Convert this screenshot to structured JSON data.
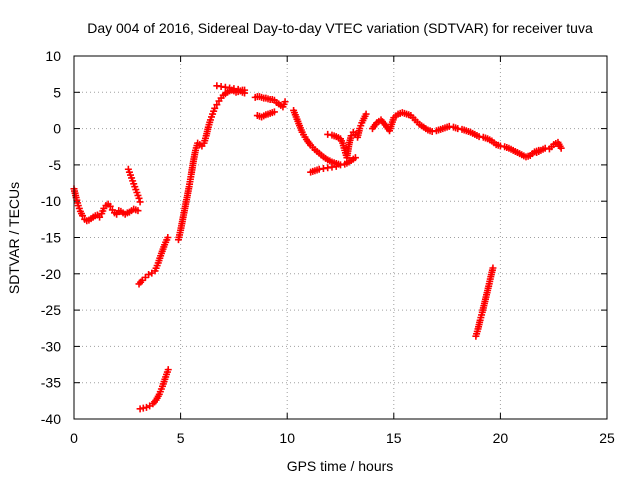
{
  "chart_data": {
    "type": "scatter",
    "title": "Day 004 of 2016, Sidereal Day-to-day VTEC variation (SDTVAR) for receiver tuva",
    "xlabel": "GPS time / hours",
    "ylabel": "SDTVAR / TECUs",
    "xlim": [
      0,
      25
    ],
    "ylim": [
      -40,
      10
    ],
    "xticks": [
      0,
      5,
      10,
      15,
      20,
      25
    ],
    "yticks": [
      -40,
      -35,
      -30,
      -25,
      -20,
      -15,
      -10,
      -5,
      0,
      5,
      10
    ],
    "xtick_labels": [
      "0",
      "5",
      "10",
      "15",
      "20",
      "25"
    ],
    "ytick_labels": [
      "-40",
      "-35",
      "-30",
      "-25",
      "-20",
      "-15",
      "-10",
      "-5",
      "0",
      "5",
      "10"
    ],
    "grid": true,
    "marker": "plus",
    "color": "#ff0000",
    "series": [
      {
        "name": "seg1",
        "x": [
          0.0,
          0.1,
          0.2,
          0.3,
          0.4,
          0.5,
          0.6,
          0.7,
          0.8,
          0.9,
          1.0,
          1.1,
          1.2,
          1.3,
          1.4,
          1.5,
          1.6,
          1.7,
          1.8,
          1.9,
          2.0,
          2.1,
          2.2,
          2.3,
          2.4,
          2.5,
          2.6,
          2.7,
          2.8,
          2.9,
          3.0
        ],
        "y": [
          -8.3,
          -9.5,
          -10.6,
          -11.4,
          -12.0,
          -12.5,
          -12.7,
          -12.6,
          -12.4,
          -12.2,
          -12.0,
          -11.9,
          -12.2,
          -11.7,
          -11.0,
          -10.6,
          -10.4,
          -10.7,
          -11.2,
          -11.6,
          -11.8,
          -11.3,
          -11.4,
          -11.6,
          -11.8,
          -11.6,
          -11.5,
          -11.3,
          -11.1,
          -11.2,
          -11.3
        ]
      },
      {
        "name": "seg2",
        "x": [
          2.55,
          2.65,
          2.75,
          2.85,
          2.95,
          3.05,
          3.1
        ],
        "y": [
          -5.6,
          -6.4,
          -7.2,
          -8.0,
          -8.8,
          -9.6,
          -10.1
        ]
      },
      {
        "name": "seg3",
        "x": [
          3.05,
          3.2,
          3.35,
          3.5,
          3.65,
          3.8,
          3.95,
          4.1,
          4.25,
          4.4
        ],
        "y": [
          -21.4,
          -20.9,
          -20.5,
          -20.1,
          -19.9,
          -19.6,
          -18.5,
          -17.2,
          -16.0,
          -15.0
        ]
      },
      {
        "name": "seg4",
        "x": [
          3.1,
          3.25,
          3.4,
          3.55,
          3.7,
          3.85,
          4.0,
          4.15,
          4.3,
          4.42
        ],
        "y": [
          -38.6,
          -38.5,
          -38.4,
          -38.2,
          -37.9,
          -37.4,
          -36.6,
          -35.5,
          -34.2,
          -33.2
        ]
      },
      {
        "name": "seg5",
        "x": [
          4.9,
          5.0,
          5.1,
          5.2,
          5.3,
          5.4,
          5.5,
          5.6,
          5.7,
          5.8,
          5.9,
          6.0,
          6.1,
          6.2,
          6.3,
          6.4,
          6.5,
          6.6,
          6.7,
          6.8,
          6.9,
          7.0,
          7.1,
          7.2,
          7.3,
          7.4,
          7.5,
          7.6,
          7.7,
          7.8,
          7.9,
          8.0
        ],
        "y": [
          -15.3,
          -14.0,
          -12.5,
          -11.0,
          -9.5,
          -8.0,
          -6.3,
          -4.5,
          -3.0,
          -2.0,
          -2.2,
          -2.4,
          -2.0,
          -1.0,
          0.2,
          1.2,
          2.0,
          2.8,
          3.3,
          3.8,
          4.2,
          4.6,
          4.8,
          5.0,
          5.2,
          5.3,
          5.2,
          5.0,
          5.1,
          5.2,
          5.0,
          4.9
        ]
      },
      {
        "name": "seg6",
        "x": [
          6.7,
          6.9,
          7.1,
          7.3,
          7.5,
          7.7,
          7.9,
          8.0
        ],
        "y": [
          5.9,
          5.8,
          5.7,
          5.6,
          5.5,
          5.4,
          5.3,
          5.3
        ]
      },
      {
        "name": "seg7",
        "x": [
          8.5,
          8.6,
          8.7,
          8.8,
          8.9,
          9.0,
          9.1,
          9.2,
          9.3,
          9.4,
          9.5,
          9.6,
          9.7,
          9.8,
          9.9
        ],
        "y": [
          4.3,
          4.4,
          4.4,
          4.3,
          4.2,
          4.2,
          4.1,
          4.0,
          4.0,
          3.9,
          3.6,
          3.4,
          3.2,
          3.0,
          3.7
        ]
      },
      {
        "name": "seg8",
        "x": [
          8.6,
          8.8,
          9.0,
          9.2,
          9.4
        ],
        "y": [
          1.8,
          1.6,
          1.9,
          2.1,
          2.3
        ]
      },
      {
        "name": "seg9",
        "x": [
          10.3,
          10.5,
          10.7,
          10.9,
          11.1,
          11.3,
          11.5,
          11.7,
          11.9,
          12.1,
          12.3,
          12.5,
          12.7,
          12.9,
          13.1,
          13.2
        ],
        "y": [
          2.5,
          1.0,
          -0.5,
          -1.5,
          -2.3,
          -2.9,
          -3.4,
          -3.9,
          -4.3,
          -4.6,
          -4.8,
          -5.0,
          -4.9,
          -4.6,
          -4.2,
          -4.0
        ]
      },
      {
        "name": "seg10",
        "x": [
          11.1,
          11.3,
          11.5,
          11.7,
          11.9,
          12.1,
          12.3
        ],
        "y": [
          -6.0,
          -5.8,
          -5.6,
          -5.5,
          -5.4,
          -5.3,
          -5.2
        ]
      },
      {
        "name": "seg11",
        "x": [
          11.9,
          12.1,
          12.3,
          12.5,
          12.6,
          12.7,
          12.8,
          12.9,
          13.0,
          13.1,
          13.2,
          13.3,
          13.4,
          13.5,
          13.6,
          13.7
        ],
        "y": [
          -0.8,
          -0.9,
          -1.1,
          -1.4,
          -2.0,
          -3.0,
          -4.0,
          -2.2,
          -1.0,
          -0.5,
          -0.8,
          -1.2,
          0.0,
          0.8,
          1.4,
          2.0
        ]
      },
      {
        "name": "seg12",
        "x": [
          14.0,
          14.2,
          14.4,
          14.6,
          14.8,
          15.0,
          15.2,
          15.4,
          15.6,
          15.8,
          16.0,
          16.2,
          16.4,
          16.6,
          16.8,
          17.0,
          17.2,
          17.4,
          17.6,
          17.8,
          18.0,
          18.2,
          18.4,
          18.6,
          18.8,
          19.0,
          19.2,
          19.4,
          19.6,
          19.8,
          20.0,
          20.2,
          20.4,
          20.6,
          20.8,
          21.0,
          21.2,
          21.4,
          21.6,
          21.8
        ],
        "y": [
          0.0,
          0.8,
          1.2,
          0.5,
          -0.3,
          1.5,
          2.0,
          2.2,
          2.0,
          1.8,
          1.2,
          0.6,
          0.2,
          -0.2,
          -0.4,
          -0.3,
          -0.1,
          0.1,
          0.3,
          0.2,
          0.0,
          -0.1,
          -0.3,
          -0.5,
          -0.8,
          -1.1,
          -1.2,
          -1.4,
          -1.7,
          -2.2,
          -2.4,
          -2.5,
          -2.7,
          -3.0,
          -3.3,
          -3.6,
          -3.9,
          -3.7,
          -3.2,
          -3.0
        ]
      },
      {
        "name": "seg13",
        "x": [
          21.7,
          21.9,
          22.1,
          22.3,
          22.5,
          22.7,
          22.85
        ],
        "y": [
          -3.3,
          -3.0,
          -2.7,
          -2.8,
          -2.2,
          -1.9,
          -2.7
        ]
      },
      {
        "name": "seg14",
        "x": [
          18.85,
          18.95,
          19.05,
          19.15,
          19.25,
          19.35,
          19.45,
          19.55,
          19.65
        ],
        "y": [
          -28.6,
          -27.6,
          -26.4,
          -25.3,
          -24.1,
          -22.9,
          -21.7,
          -20.4,
          -19.2
        ]
      }
    ]
  }
}
